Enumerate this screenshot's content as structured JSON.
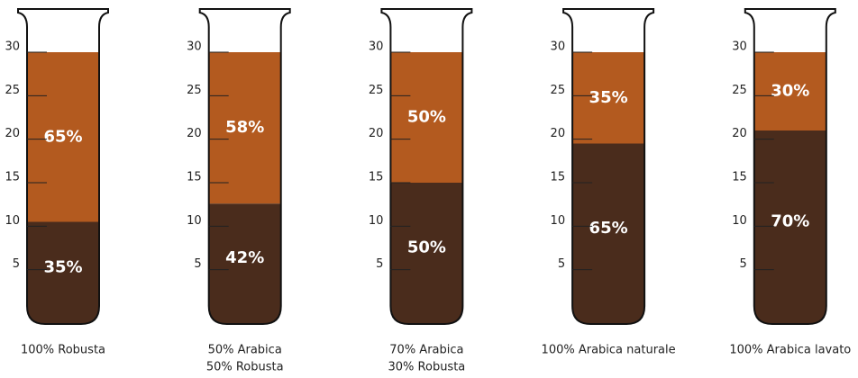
{
  "chart_data": {
    "type": "tube",
    "categories": [
      [
        "100% Robusta"
      ],
      [
        "50% Arabica",
        "50% Robusta"
      ],
      [
        "70% Arabica",
        "30% Robusta"
      ],
      [
        "100% Arabica naturale"
      ],
      [
        "100% Arabica lavato"
      ]
    ],
    "series": [
      {
        "color": "#4a2c1c",
        "values": [
          10.5,
          12.6,
          15,
          19.5,
          21
        ],
        "value_labels": [
          "35%",
          "42%",
          "50%",
          "65%",
          "70%"
        ]
      },
      {
        "color": "#b35a1f",
        "values": [
          19.5,
          17.4,
          15,
          10.5,
          9
        ],
        "value_labels": [
          "65%",
          "58%",
          "50%",
          "35%",
          "30%"
        ]
      }
    ],
    "ylim": [
      0,
      30
    ],
    "yticks": [
      5,
      10,
      15,
      20,
      25,
      30
    ]
  }
}
